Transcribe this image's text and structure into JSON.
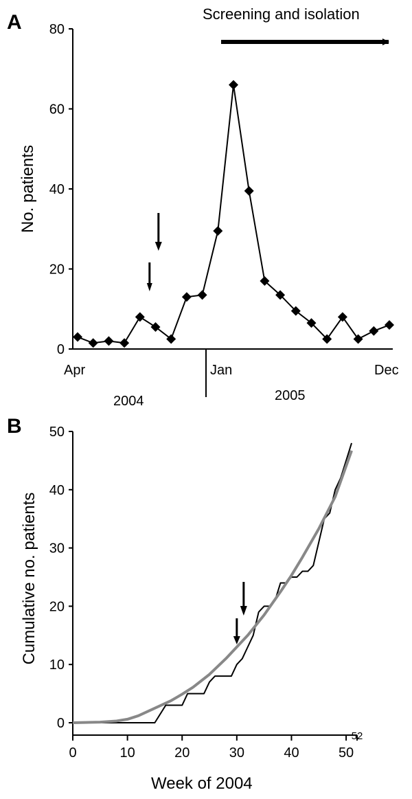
{
  "chart_data": [
    {
      "panel": "A",
      "type": "line",
      "markers": "diamond",
      "ylabel": "No. patients",
      "ylim": [
        0,
        80
      ],
      "yticks": [
        0,
        20,
        40,
        60,
        80
      ],
      "month_labels": [
        "Apr",
        "Jan",
        "Dec"
      ],
      "year_labels": [
        "2004",
        "2005"
      ],
      "annotation": "Screening and isolation",
      "arrows_near_point_index": 4,
      "values": [
        3,
        1.5,
        2,
        1.5,
        8,
        5.5,
        2.5,
        13,
        13.5,
        29.5,
        66,
        39.5,
        17,
        13.5,
        9.5,
        6.5,
        2.5,
        8,
        2.5,
        4.5,
        6
      ]
    },
    {
      "panel": "B",
      "type": "line",
      "xlabel": "Week of 2004",
      "ylabel": "Cumulative no. patients",
      "xlim": [
        0,
        52
      ],
      "ylim": [
        0,
        50
      ],
      "xticks": [
        0,
        10,
        20,
        30,
        40,
        50
      ],
      "extra_xtick": 52,
      "yticks": [
        0,
        10,
        20,
        30,
        40,
        50
      ],
      "arrow_week": 30,
      "series": [
        {
          "style": "observed",
          "color": "#000000",
          "x": [
            0,
            15,
            17,
            20,
            21,
            24,
            25,
            26,
            27,
            29,
            30,
            31,
            32,
            33,
            34,
            35,
            36,
            37,
            38,
            39,
            40,
            41,
            42,
            43,
            44,
            45,
            46,
            47,
            48,
            49,
            50,
            51
          ],
          "y": [
            0,
            0,
            3,
            3,
            5,
            5,
            7,
            8,
            8,
            8,
            10,
            11,
            13,
            15,
            19,
            20,
            20,
            21,
            24,
            24,
            25,
            25,
            26,
            26,
            27,
            31,
            35,
            36,
            40,
            42,
            45,
            48
          ]
        },
        {
          "style": "fitted",
          "color": "#888888",
          "x": [
            0,
            5,
            8,
            10,
            12,
            15,
            18,
            20,
            22,
            25,
            28,
            30,
            32,
            35,
            38,
            40,
            42,
            45,
            48,
            51
          ],
          "y": [
            0,
            0.1,
            0.3,
            0.6,
            1.2,
            2.5,
            3.8,
            4.9,
            6.1,
            8.3,
            11,
            13,
            15,
            18.5,
            22.5,
            25.3,
            28.4,
            33.3,
            38.8,
            46.7
          ]
        }
      ]
    }
  ]
}
